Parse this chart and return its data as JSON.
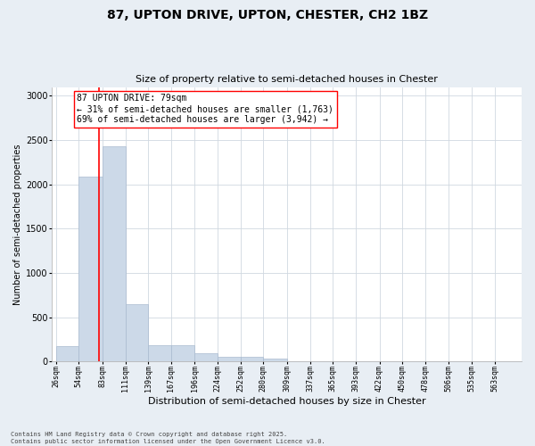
{
  "title_line1": "87, UPTON DRIVE, UPTON, CHESTER, CH2 1BZ",
  "title_line2": "Size of property relative to semi-detached houses in Chester",
  "xlabel": "Distribution of semi-detached houses by size in Chester",
  "ylabel": "Number of semi-detached properties",
  "bar_color": "#ccd9e8",
  "bar_edgecolor": "#aabbd0",
  "vline_x": 79,
  "vline_color": "red",
  "annotation_line1": "87 UPTON DRIVE: 79sqm",
  "annotation_line2": "← 31% of semi-detached houses are smaller (1,763)",
  "annotation_line3": "69% of semi-detached houses are larger (3,942) →",
  "annotation_box_color": "white",
  "annotation_box_edgecolor": "red",
  "bins": [
    26,
    54,
    83,
    111,
    139,
    167,
    196,
    224,
    252,
    280,
    309,
    337,
    365,
    393,
    422,
    450,
    478,
    506,
    535,
    563,
    591
  ],
  "counts": [
    170,
    2090,
    2430,
    650,
    185,
    185,
    90,
    55,
    50,
    30,
    0,
    0,
    0,
    0,
    0,
    0,
    0,
    0,
    0,
    0
  ],
  "ylim": [
    0,
    3100
  ],
  "yticks": [
    0,
    500,
    1000,
    1500,
    2000,
    2500,
    3000
  ],
  "footer_text": "Contains HM Land Registry data © Crown copyright and database right 2025.\nContains public sector information licensed under the Open Government Licence v3.0.",
  "background_color": "#e8eef4",
  "plot_background_color": "#ffffff",
  "grid_color": "#d0d8e0",
  "title_fontsize": 10,
  "subtitle_fontsize": 8,
  "ylabel_fontsize": 7,
  "xlabel_fontsize": 8,
  "tick_fontsize": 6,
  "ytick_fontsize": 7,
  "footer_fontsize": 5,
  "annot_fontsize": 7
}
